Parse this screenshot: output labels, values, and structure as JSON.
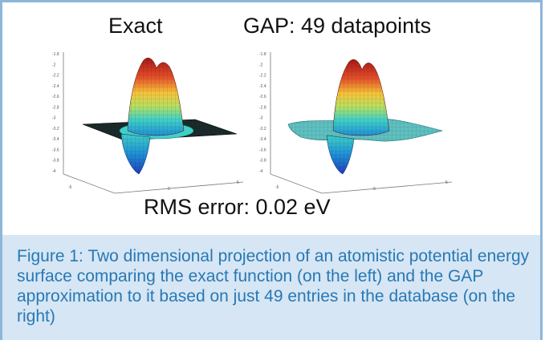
{
  "panels": {
    "left_title": "Exact",
    "right_title": "GAP: 49 datapoints",
    "rms_label": "RMS error: 0.02 eV",
    "z_ticks": [
      "-1.8",
      "-2",
      "-2.2",
      "-2.4",
      "-2.6",
      "-2.8",
      "-3",
      "-3.2",
      "-3.4",
      "-3.6",
      "-3.8",
      "-4"
    ],
    "x_ticks": [
      "-5",
      "0",
      "5"
    ],
    "colormap": [
      "#1f3fb8",
      "#1f8fd6",
      "#3fd0c8",
      "#b8e060",
      "#f6c43a",
      "#e4502a",
      "#a81818"
    ]
  },
  "caption": {
    "text": "Figure 1: Two dimensional projection of an atomistic potential energy surface comparing the exact function (on the left) and the GAP approximation to it based on just 49 entries in the database (on the right)"
  }
}
